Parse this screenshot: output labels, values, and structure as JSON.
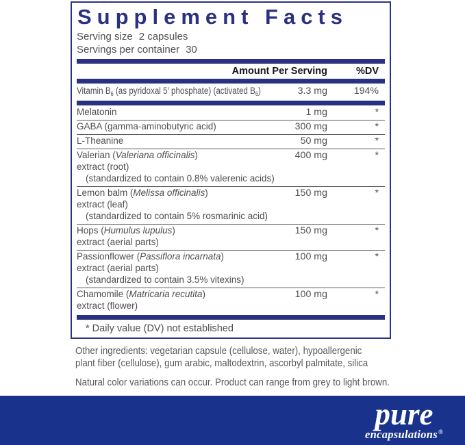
{
  "colors": {
    "navy": "#2b3181",
    "brand_blue": "#19338c",
    "row_text": "#4e4e52",
    "header_text": "#15151d",
    "hairline": "#58585c",
    "footer_text": "#57575a"
  },
  "panel": {
    "title": "Supplement Facts",
    "serving_size": {
      "label": "Serving size",
      "value": "2 capsules"
    },
    "servings_per_container": {
      "label": "Servings per container",
      "value": "30"
    },
    "columns": {
      "amount": "Amount Per Serving",
      "dv": "%DV"
    },
    "rows": [
      {
        "line1": [
          {
            "text": "Vitamin B"
          },
          {
            "text": "6",
            "sub": true
          },
          {
            "text": " (as pyridoxal 5′ phosphate) (activated B"
          },
          {
            "text": "6",
            "sub": true
          },
          {
            "text": ")"
          }
        ],
        "amount": "3.3 mg",
        "dv": "194%",
        "compress": true,
        "divider_after": "thick"
      },
      {
        "line1": [
          {
            "text": "Melatonin"
          }
        ],
        "amount": "1 mg",
        "dv": "*"
      },
      {
        "line1": [
          {
            "text": "GABA (gamma-aminobutyric acid)"
          }
        ],
        "amount": "300 mg",
        "dv": "*"
      },
      {
        "line1": [
          {
            "text": "L-Theanine"
          }
        ],
        "amount": "50 mg",
        "dv": "*"
      },
      {
        "line1": [
          {
            "text": "Valerian ("
          },
          {
            "text": "Valeriana officinalis",
            "italic": true
          },
          {
            "text": ")"
          }
        ],
        "extra_lines": [
          {
            "text": "extract (root)"
          },
          {
            "text": "(standardized to contain 0.8% valerenic acids)",
            "indent": true
          }
        ],
        "amount": "400 mg",
        "dv": "*"
      },
      {
        "line1": [
          {
            "text": "Lemon balm ("
          },
          {
            "text": "Melissa officinalis",
            "italic": true
          },
          {
            "text": ")"
          }
        ],
        "extra_lines": [
          {
            "text": "extract (leaf)"
          },
          {
            "text": "(standardized to contain 5% rosmarinic acid)",
            "indent": true
          }
        ],
        "amount": "150 mg",
        "dv": "*"
      },
      {
        "line1": [
          {
            "text": "Hops ("
          },
          {
            "text": "Humulus lupulus",
            "italic": true
          },
          {
            "text": ")"
          }
        ],
        "extra_lines": [
          {
            "text": "extract (aerial parts)"
          }
        ],
        "amount": "150 mg",
        "dv": "*"
      },
      {
        "line1": [
          {
            "text": "Passionflower ("
          },
          {
            "text": "Passiflora incarnata",
            "italic": true
          },
          {
            "text": ")"
          }
        ],
        "extra_lines": [
          {
            "text": "extract (aerial parts)"
          },
          {
            "text": "(standardized to contain 3.5% vitexins)",
            "indent": true
          }
        ],
        "amount": "100 mg",
        "dv": "*"
      },
      {
        "line1": [
          {
            "text": "Chamomile ("
          },
          {
            "text": "Matricaria recutita",
            "italic": true
          },
          {
            "text": ")"
          }
        ],
        "extra_lines": [
          {
            "text": "extract (flower)"
          }
        ],
        "amount": "100 mg",
        "dv": "*"
      }
    ],
    "footnote": "* Daily value (DV) not established"
  },
  "footer": {
    "other_ingredients_lines": [
      "Other ingredients: vegetarian capsule (cellulose, water), hypoallergenic",
      "plant fiber (cellulose), gum arabic, maltodextrin, ascorbyl palmitate, silica"
    ],
    "note": "Natural color variations can occur. Product can range from grey to light brown."
  },
  "brand": {
    "name": "pure",
    "subname": "encapsulations",
    "registered": "®"
  }
}
